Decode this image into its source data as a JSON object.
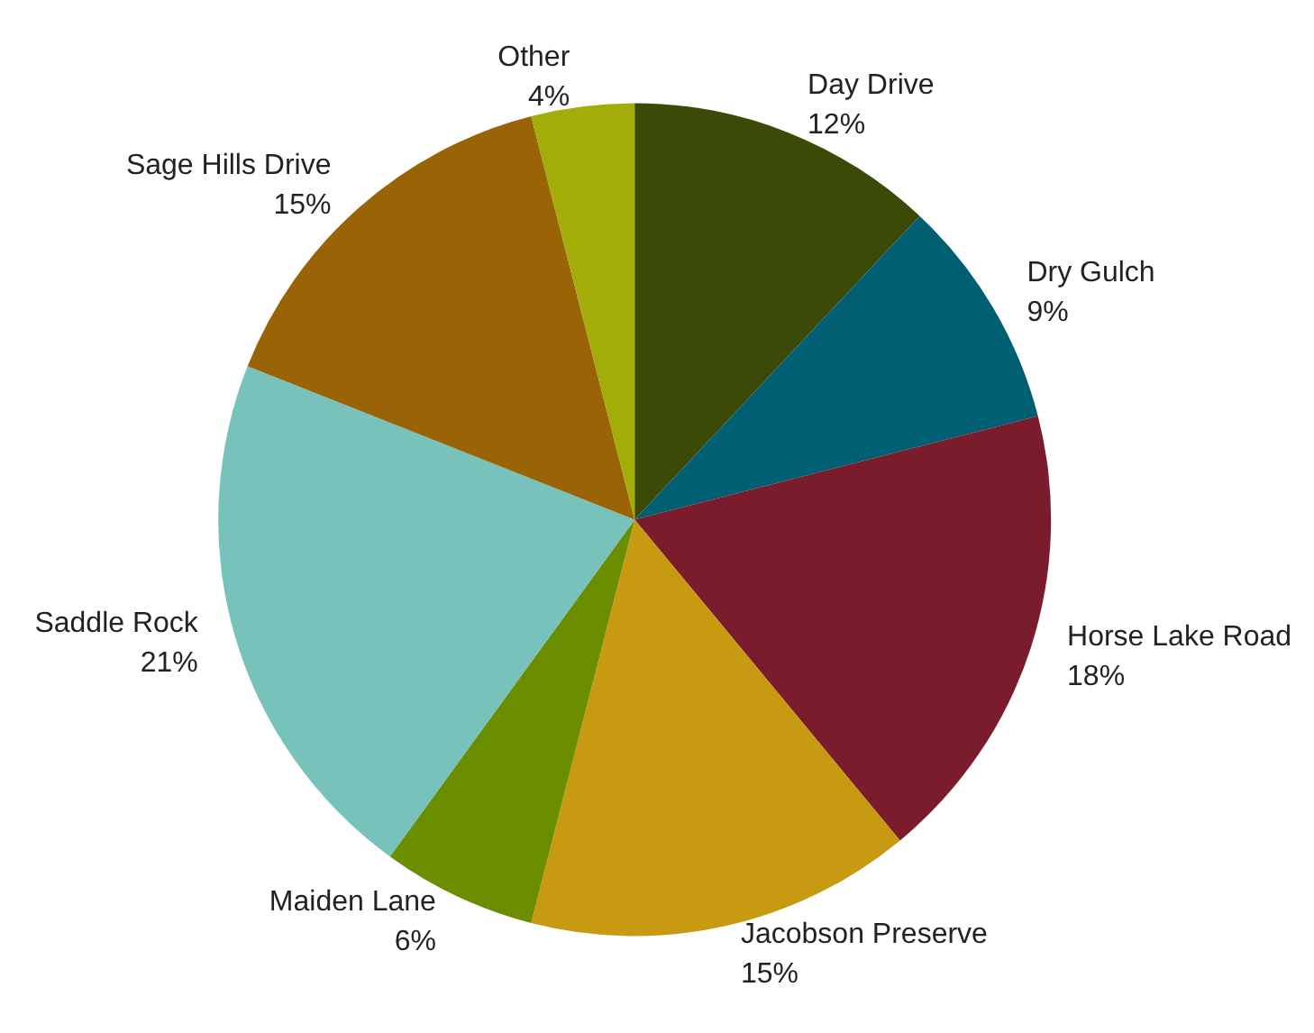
{
  "chart_data": {
    "type": "pie",
    "categories": [
      "Day Drive",
      "Dry Gulch",
      "Horse Lake Road",
      "Jacobson Preserve",
      "Maiden Lane",
      "Saddle Rock",
      "Sage Hills Drive",
      "Other"
    ],
    "values": [
      12,
      9,
      18,
      15,
      6,
      21,
      15,
      4
    ],
    "colors": [
      "#3b4a06",
      "#005f73",
      "#7b1c2c",
      "#c89a12",
      "#6b8e00",
      "#77c2bb",
      "#9a6306",
      "#a3ad0a"
    ],
    "value_labels": [
      "12%",
      "9%",
      "18%",
      "15%",
      "6%",
      "21%",
      "15%",
      "4%"
    ],
    "legend": false
  }
}
